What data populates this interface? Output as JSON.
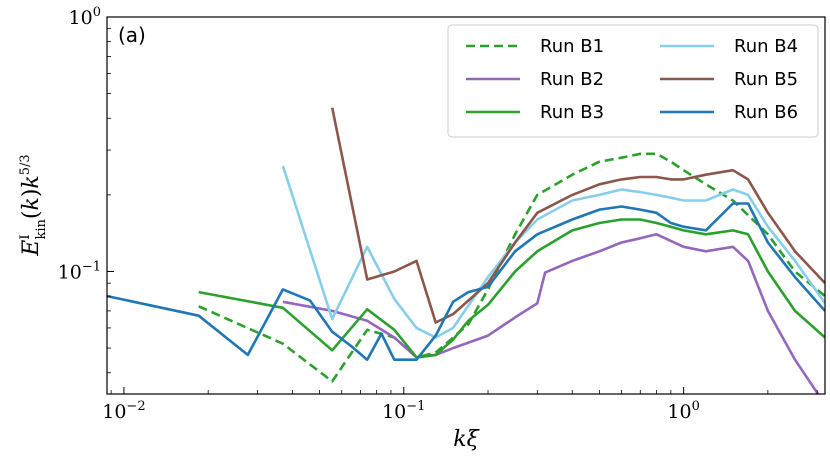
{
  "chart_data": {
    "type": "line",
    "panel_label": "(a)",
    "xlabel": "kξ",
    "ylabel": "E_kin^I(k) k^{5/3}",
    "xscale": "log",
    "yscale": "log",
    "xlim": [
      0.0087,
      3.2
    ],
    "ylim": [
      0.033,
      1.0
    ],
    "x_ticks": [
      {
        "value": 0.01,
        "base": "10",
        "exp": "−2"
      },
      {
        "value": 0.1,
        "base": "10",
        "exp": "−1"
      },
      {
        "value": 1,
        "base": "10",
        "exp": "0"
      }
    ],
    "y_ticks": [
      {
        "value": 0.1,
        "base": "10",
        "exp": "−1"
      },
      {
        "value": 1,
        "base": "10",
        "exp": "0"
      }
    ],
    "legend": {
      "placement": "top-right",
      "columns": 2
    },
    "series": [
      {
        "name": "Run B1",
        "color": "#2ca02c",
        "dash": true,
        "x": [
          0.0185,
          0.037,
          0.0555,
          0.074,
          0.0925,
          0.111,
          0.13,
          0.15,
          0.17,
          0.2,
          0.25,
          0.3,
          0.4,
          0.5,
          0.6,
          0.7,
          0.8,
          0.9,
          1.0,
          1.2,
          1.5,
          2.0,
          2.5,
          3.2
        ],
        "y": [
          0.073,
          0.052,
          0.037,
          0.059,
          0.055,
          0.046,
          0.048,
          0.055,
          0.062,
          0.085,
          0.14,
          0.2,
          0.24,
          0.27,
          0.28,
          0.29,
          0.29,
          0.27,
          0.25,
          0.22,
          0.19,
          0.14,
          0.1,
          0.08
        ]
      },
      {
        "name": "Run B2",
        "color": "#9467bd",
        "dash": false,
        "x": [
          0.037,
          0.0555,
          0.074,
          0.0925,
          0.111,
          0.13,
          0.15,
          0.2,
          0.25,
          0.3,
          0.32,
          0.4,
          0.5,
          0.6,
          0.7,
          0.8,
          1.0,
          1.2,
          1.5,
          1.7,
          2.0,
          2.5,
          3.2
        ],
        "y": [
          0.076,
          0.07,
          0.064,
          0.055,
          0.046,
          0.047,
          0.05,
          0.056,
          0.066,
          0.075,
          0.099,
          0.11,
          0.12,
          0.13,
          0.135,
          0.14,
          0.125,
          0.12,
          0.125,
          0.11,
          0.07,
          0.045,
          0.03
        ]
      },
      {
        "name": "Run B3",
        "color": "#2ca02c",
        "dash": false,
        "x": [
          0.0185,
          0.037,
          0.0555,
          0.074,
          0.0925,
          0.111,
          0.13,
          0.15,
          0.17,
          0.2,
          0.25,
          0.3,
          0.4,
          0.5,
          0.6,
          0.7,
          0.8,
          0.9,
          1.0,
          1.2,
          1.5,
          1.7,
          2.0,
          2.5,
          3.2
        ],
        "y": [
          0.083,
          0.072,
          0.049,
          0.071,
          0.059,
          0.046,
          0.047,
          0.054,
          0.064,
          0.074,
          0.1,
          0.12,
          0.145,
          0.155,
          0.16,
          0.16,
          0.155,
          0.15,
          0.145,
          0.14,
          0.145,
          0.14,
          0.1,
          0.07,
          0.055
        ]
      },
      {
        "name": "Run B4",
        "color": "#87ceeb",
        "dash": false,
        "x": [
          0.037,
          0.0555,
          0.074,
          0.0925,
          0.111,
          0.13,
          0.15,
          0.2,
          0.25,
          0.3,
          0.4,
          0.5,
          0.6,
          0.7,
          0.8,
          0.9,
          1.0,
          1.2,
          1.5,
          1.7,
          2.0,
          2.5,
          3.2
        ],
        "y": [
          0.26,
          0.065,
          0.125,
          0.078,
          0.06,
          0.055,
          0.06,
          0.095,
          0.13,
          0.16,
          0.19,
          0.2,
          0.21,
          0.205,
          0.2,
          0.195,
          0.19,
          0.19,
          0.21,
          0.2,
          0.15,
          0.11,
          0.075
        ]
      },
      {
        "name": "Run B5",
        "color": "#8c564b",
        "dash": false,
        "x": [
          0.0555,
          0.074,
          0.0925,
          0.111,
          0.13,
          0.15,
          0.2,
          0.25,
          0.3,
          0.4,
          0.5,
          0.6,
          0.7,
          0.8,
          0.9,
          1.0,
          1.2,
          1.5,
          1.7,
          2.0,
          2.5,
          3.2
        ],
        "y": [
          0.44,
          0.093,
          0.1,
          0.11,
          0.063,
          0.068,
          0.09,
          0.13,
          0.17,
          0.2,
          0.22,
          0.23,
          0.235,
          0.235,
          0.23,
          0.23,
          0.24,
          0.25,
          0.23,
          0.17,
          0.12,
          0.09
        ]
      },
      {
        "name": "Run B6",
        "color": "#1f77b4",
        "dash": false,
        "x": [
          0.0087,
          0.0185,
          0.0277,
          0.037,
          0.0462,
          0.0555,
          0.0647,
          0.074,
          0.0832,
          0.0925,
          0.111,
          0.13,
          0.15,
          0.17,
          0.2,
          0.25,
          0.3,
          0.4,
          0.5,
          0.6,
          0.7,
          0.8,
          0.9,
          1.0,
          1.2,
          1.5,
          1.7,
          2.0,
          2.5,
          3.2
        ],
        "y": [
          0.08,
          0.067,
          0.047,
          0.085,
          0.077,
          0.058,
          0.051,
          0.045,
          0.057,
          0.045,
          0.045,
          0.056,
          0.076,
          0.083,
          0.087,
          0.12,
          0.14,
          0.16,
          0.175,
          0.18,
          0.175,
          0.17,
          0.155,
          0.15,
          0.145,
          0.185,
          0.185,
          0.13,
          0.095,
          0.07
        ]
      }
    ]
  }
}
